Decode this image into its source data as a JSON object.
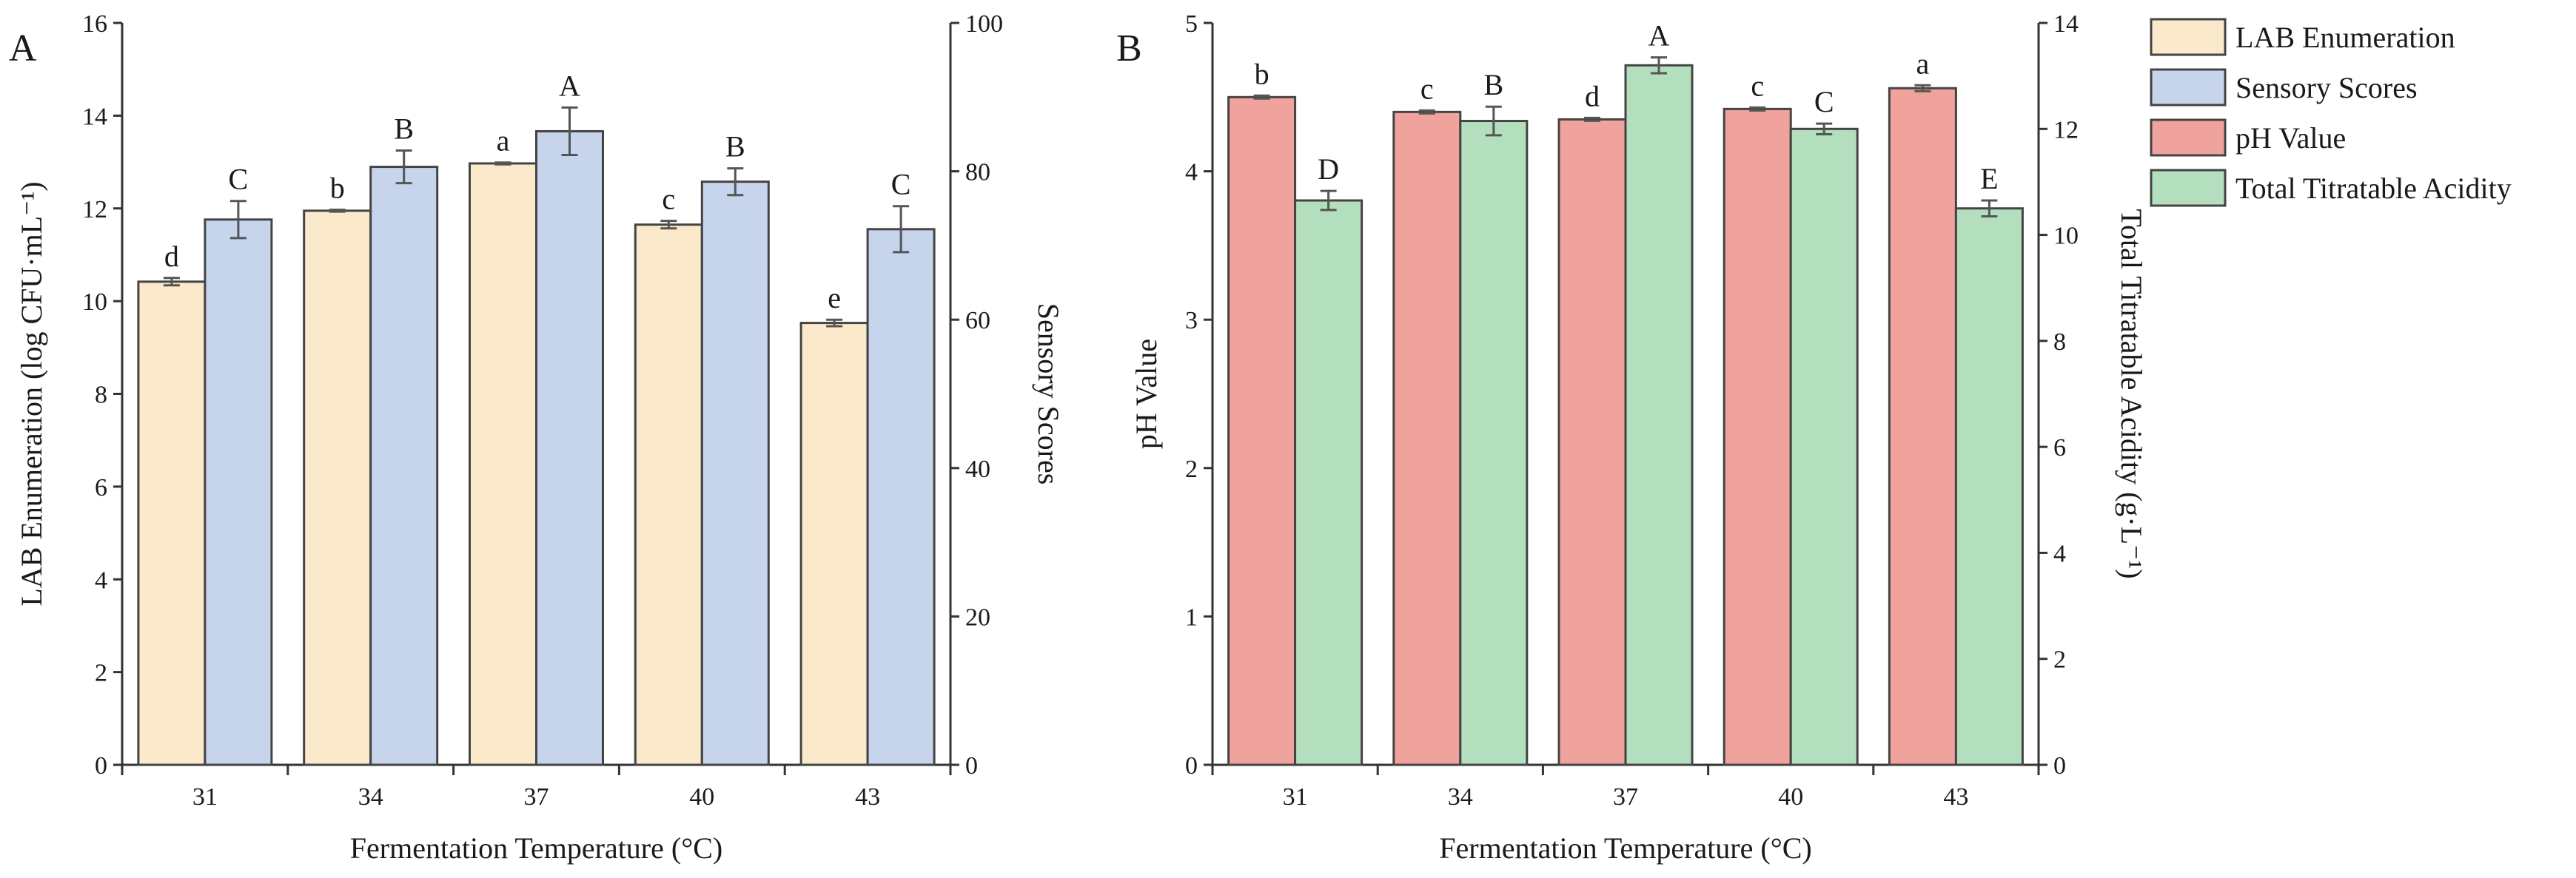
{
  "colors": {
    "lab": "#faeacb",
    "sensory": "#c6d4ec",
    "ph": "#f0a29c",
    "tta": "#b3dfbf",
    "edge": "#444444"
  },
  "legend": {
    "items": [
      {
        "label": "LAB Enumeration",
        "color": "#faeacb"
      },
      {
        "label": "Sensory Scores",
        "color": "#c6d4ec"
      },
      {
        "label": "pH Value",
        "color": "#f0a29c"
      },
      {
        "label": "Total Titratable Acidity",
        "color": "#b3dfbf"
      }
    ]
  },
  "chart_data": [
    {
      "type": "bar",
      "panel_label": "A",
      "categories": [
        "31",
        "34",
        "37",
        "40",
        "43"
      ],
      "xlabel": "Fermentation Temperature (°C)",
      "ylabel": "LAB Enumeration (log CFU·mL⁻¹)",
      "y2label": "Sensory Scores",
      "ylim": [
        0,
        16
      ],
      "y2lim": [
        0,
        100
      ],
      "yticks": [
        "0",
        "2",
        "4",
        "6",
        "8",
        "10",
        "12",
        "14",
        "16"
      ],
      "y2ticks": [
        "0",
        "20",
        "40",
        "60",
        "80",
        "100"
      ],
      "series": [
        {
          "name": "LAB Enumeration",
          "axis": "left",
          "values": [
            10.42,
            11.95,
            12.97,
            11.65,
            9.53
          ],
          "errors": [
            0.08,
            0.02,
            0.02,
            0.08,
            0.07
          ],
          "letters": [
            "d",
            "b",
            "a",
            "c",
            "e"
          ]
        },
        {
          "name": "Sensory Scores",
          "axis": "right",
          "values": [
            73.5,
            80.6,
            85.4,
            78.6,
            72.2
          ],
          "errors": [
            2.5,
            2.2,
            3.2,
            1.8,
            3.1
          ],
          "letters": [
            "C",
            "B",
            "A",
            "B",
            "C"
          ]
        }
      ]
    },
    {
      "type": "bar",
      "panel_label": "B",
      "categories": [
        "31",
        "34",
        "37",
        "40",
        "43"
      ],
      "xlabel": "Fermentation Temperature (°C)",
      "ylabel": "pH Value",
      "y2label": "Total Titratable Acidity (g·L⁻¹)",
      "ylim": [
        0,
        5
      ],
      "y2lim": [
        0,
        14
      ],
      "yticks": [
        "0",
        "1",
        "2",
        "3",
        "4",
        "5"
      ],
      "y2ticks": [
        "0",
        "2",
        "4",
        "6",
        "8",
        "10",
        "12",
        "14"
      ],
      "series": [
        {
          "name": "pH Value",
          "axis": "left",
          "values": [
            4.5,
            4.4,
            4.35,
            4.42,
            4.56
          ],
          "errors": [
            0.01,
            0.01,
            0.01,
            0.01,
            0.02
          ],
          "letters": [
            "b",
            "c",
            "d",
            "c",
            "a"
          ]
        },
        {
          "name": "Total Titratable Acidity",
          "axis": "right",
          "values": [
            10.65,
            12.15,
            13.2,
            12.0,
            10.5
          ],
          "errors": [
            0.18,
            0.27,
            0.15,
            0.1,
            0.15
          ],
          "letters": [
            "D",
            "B",
            "A",
            "C",
            "E"
          ]
        }
      ]
    }
  ]
}
